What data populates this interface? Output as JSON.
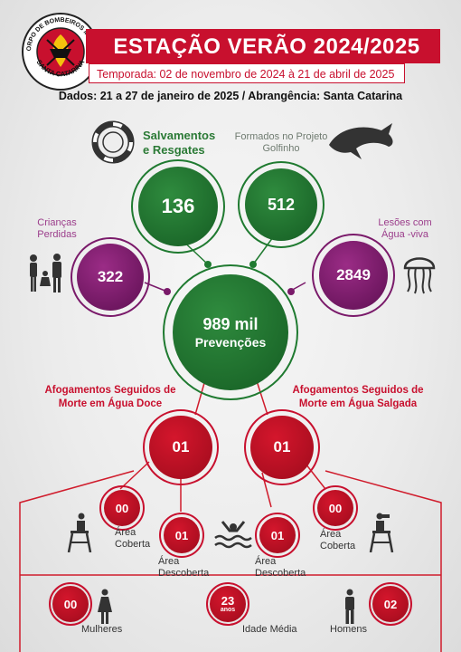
{
  "logo": {
    "top_text": "CORPO DE BOMBEIROS MILITAR",
    "bottom_text": "SANTA CATARINA"
  },
  "header": {
    "title": "ESTAÇÃO VERÃO 2024/2025",
    "season": "Temporada: 02 de novembro de 2024 à 21 de abril de 2025",
    "dados": "Dados: 21 a 27 de janeiro de 2025 / Abrangência: Santa Catarina"
  },
  "stats": {
    "salvamentos": {
      "label": "Salvamentos e Resgates",
      "value": "136"
    },
    "golfinho": {
      "label": "Formados no Projeto Golfinho",
      "value": "512"
    },
    "criancas": {
      "label": "Crianças Perdidas",
      "value": "322"
    },
    "lesoes": {
      "label": "Lesões com Água -viva",
      "value": "2849"
    },
    "prevencoes": {
      "value": "989 mil",
      "label": "Prevenções"
    }
  },
  "afogamentos": {
    "doce": {
      "label": "Afogamentos Seguidos de Morte em Água Doce",
      "value": "01"
    },
    "salgada": {
      "label": "Afogamentos Seguidos de Morte em Água Salgada",
      "value": "01"
    }
  },
  "detalhes": {
    "doce_coberta": {
      "value": "00",
      "label": "Área Coberta"
    },
    "doce_descoberta": {
      "value": "01",
      "label": "Área Descoberta"
    },
    "salgada_descoberta": {
      "value": "01",
      "label": "Área Descoberta"
    },
    "salgada_coberta": {
      "value": "00",
      "label": "Área Coberta"
    }
  },
  "perfil": {
    "mulheres": {
      "value": "00",
      "label": "Mulheres"
    },
    "idade": {
      "value": "23",
      "unit": "anos",
      "label": "Idade Média"
    },
    "homens": {
      "value": "02",
      "label": "Homens"
    }
  },
  "colors": {
    "red": "#c8102e",
    "green": "#1f7a30",
    "purple": "#7a1a6a"
  }
}
